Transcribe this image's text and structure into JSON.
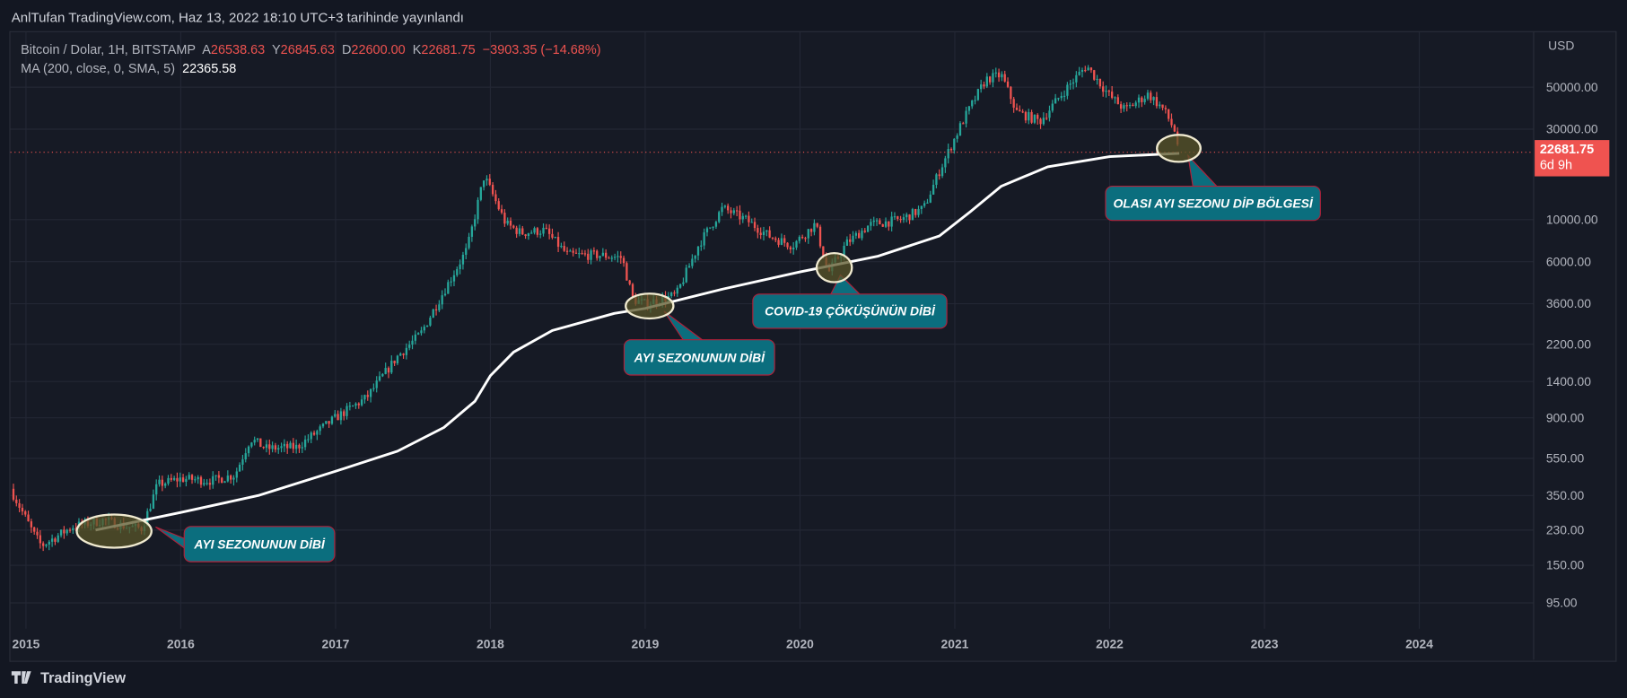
{
  "header": {
    "published": "AnlTufan TradingView.com, Haz 13, 2022 18:10 UTC+3 tarihinde yayınlandı"
  },
  "legend": {
    "symbol": "Bitcoin / Dolar, 1H, BITSTAMP",
    "open_label": "A",
    "open": "26538.63",
    "high_label": "Y",
    "high": "26845.63",
    "low_label": "D",
    "low": "22600.00",
    "close_label": "K",
    "close": "22681.75",
    "change": "−3903.35 (−14.68%)",
    "ma_label": "MA (200, close, 0, SMA, 5)",
    "ma_value": "22365.58"
  },
  "price_tag": {
    "price": "22681.75",
    "countdown": "6d 9h"
  },
  "footer": {
    "brand": "TradingView"
  },
  "colors": {
    "up": "#26a69a",
    "down": "#ef5350",
    "ma": "#ffffff",
    "callout": "#0b6e7e",
    "callout_border": "#b0213a"
  },
  "annotations": [
    {
      "text": "AYI SEZONUNUN DİBİ",
      "date": 2015.6,
      "price": 230
    },
    {
      "text": "AYI SEZONUNUN DİBİ",
      "date": 2019.0,
      "price": 3400
    },
    {
      "text": "COVID-19 ÇÖKÜŞÜNÜN DİBİ",
      "date": 2020.2,
      "price": 5200
    },
    {
      "text": "OLASI AYI SEZONU DİP BÖLGESİ",
      "date": 2022.45,
      "price": 22600
    }
  ],
  "chart_data": {
    "type": "candlestick",
    "title": "Bitcoin / Dolar, 1H, BITSTAMP",
    "yscale": "log",
    "ylabel": "USD",
    "ylim": [
      80,
      90000
    ],
    "xlim": [
      2014.9,
      2024.9
    ],
    "x_ticks": [
      "2015",
      "2016",
      "2017",
      "2018",
      "2019",
      "2020",
      "2021",
      "2022",
      "2023",
      "2024"
    ],
    "y_ticks": [
      "50000.00",
      "30000.00",
      "10000.00",
      "6000.00",
      "3600.00",
      "2200.00",
      "1400.00",
      "900.00",
      "550.00",
      "350.00",
      "230.00",
      "150.00",
      "95.00"
    ],
    "price_path": [
      [
        2014.9,
        380
      ],
      [
        2015.05,
        220
      ],
      [
        2015.1,
        190
      ],
      [
        2015.3,
        240
      ],
      [
        2015.5,
        260
      ],
      [
        2015.65,
        240
      ],
      [
        2015.75,
        235
      ],
      [
        2015.85,
        400
      ],
      [
        2016.0,
        430
      ],
      [
        2016.2,
        420
      ],
      [
        2016.35,
        450
      ],
      [
        2016.45,
        700
      ],
      [
        2016.55,
        620
      ],
      [
        2016.75,
        630
      ],
      [
        2017.0,
        900
      ],
      [
        2017.2,
        1150
      ],
      [
        2017.4,
        1900
      ],
      [
        2017.55,
        2500
      ],
      [
        2017.7,
        4200
      ],
      [
        2017.85,
        7000
      ],
      [
        2017.96,
        17000
      ],
      [
        2018.1,
        9500
      ],
      [
        2018.2,
        8500
      ],
      [
        2018.35,
        8800
      ],
      [
        2018.5,
        6500
      ],
      [
        2018.7,
        6500
      ],
      [
        2018.85,
        6300
      ],
      [
        2018.92,
        3800
      ],
      [
        2019.0,
        3600
      ],
      [
        2019.2,
        4000
      ],
      [
        2019.35,
        7500
      ],
      [
        2019.5,
        11500
      ],
      [
        2019.65,
        10000
      ],
      [
        2019.8,
        8200
      ],
      [
        2019.95,
        7300
      ],
      [
        2020.1,
        9500
      ],
      [
        2020.18,
        5200
      ],
      [
        2020.3,
        7500
      ],
      [
        2020.45,
        9400
      ],
      [
        2020.65,
        10000
      ],
      [
        2020.8,
        11500
      ],
      [
        2020.9,
        18000
      ],
      [
        2021.05,
        33000
      ],
      [
        2021.2,
        55000
      ],
      [
        2021.3,
        58000
      ],
      [
        2021.4,
        37000
      ],
      [
        2021.55,
        33000
      ],
      [
        2021.7,
        47000
      ],
      [
        2021.85,
        65000
      ],
      [
        2022.0,
        45000
      ],
      [
        2022.1,
        38000
      ],
      [
        2022.25,
        46000
      ],
      [
        2022.35,
        38000
      ],
      [
        2022.42,
        29500
      ],
      [
        2022.45,
        22681.75
      ]
    ],
    "series": [
      {
        "name": "MA (200, close, 0, SMA, 5)",
        "points": [
          [
            2015.45,
            230
          ],
          [
            2016.0,
            285
          ],
          [
            2016.5,
            350
          ],
          [
            2017.0,
            470
          ],
          [
            2017.4,
            600
          ],
          [
            2017.7,
            800
          ],
          [
            2017.9,
            1100
          ],
          [
            2018.0,
            1500
          ],
          [
            2018.15,
            2000
          ],
          [
            2018.4,
            2600
          ],
          [
            2018.8,
            3200
          ],
          [
            2019.0,
            3400
          ],
          [
            2019.5,
            4300
          ],
          [
            2020.0,
            5300
          ],
          [
            2020.5,
            6400
          ],
          [
            2020.9,
            8200
          ],
          [
            2021.1,
            11000
          ],
          [
            2021.3,
            15000
          ],
          [
            2021.6,
            19000
          ],
          [
            2022.0,
            21500
          ],
          [
            2022.45,
            22365.58
          ]
        ]
      }
    ],
    "last_price": 22681.75
  }
}
